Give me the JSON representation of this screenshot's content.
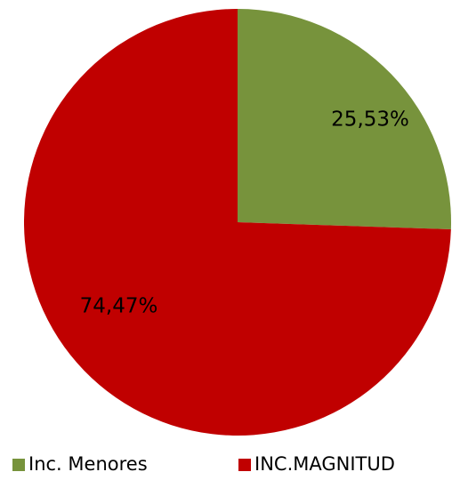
{
  "chart_data": {
    "type": "pie",
    "categories": [
      "Inc. Menores",
      "INC.MAGNITUD"
    ],
    "values": [
      25.53,
      74.47
    ],
    "value_labels": [
      "25,53%",
      "74,47%"
    ],
    "colors": [
      "#77933c",
      "#c00000"
    ],
    "start_angle": 0,
    "direction": "clockwise",
    "legend": "bottom"
  }
}
